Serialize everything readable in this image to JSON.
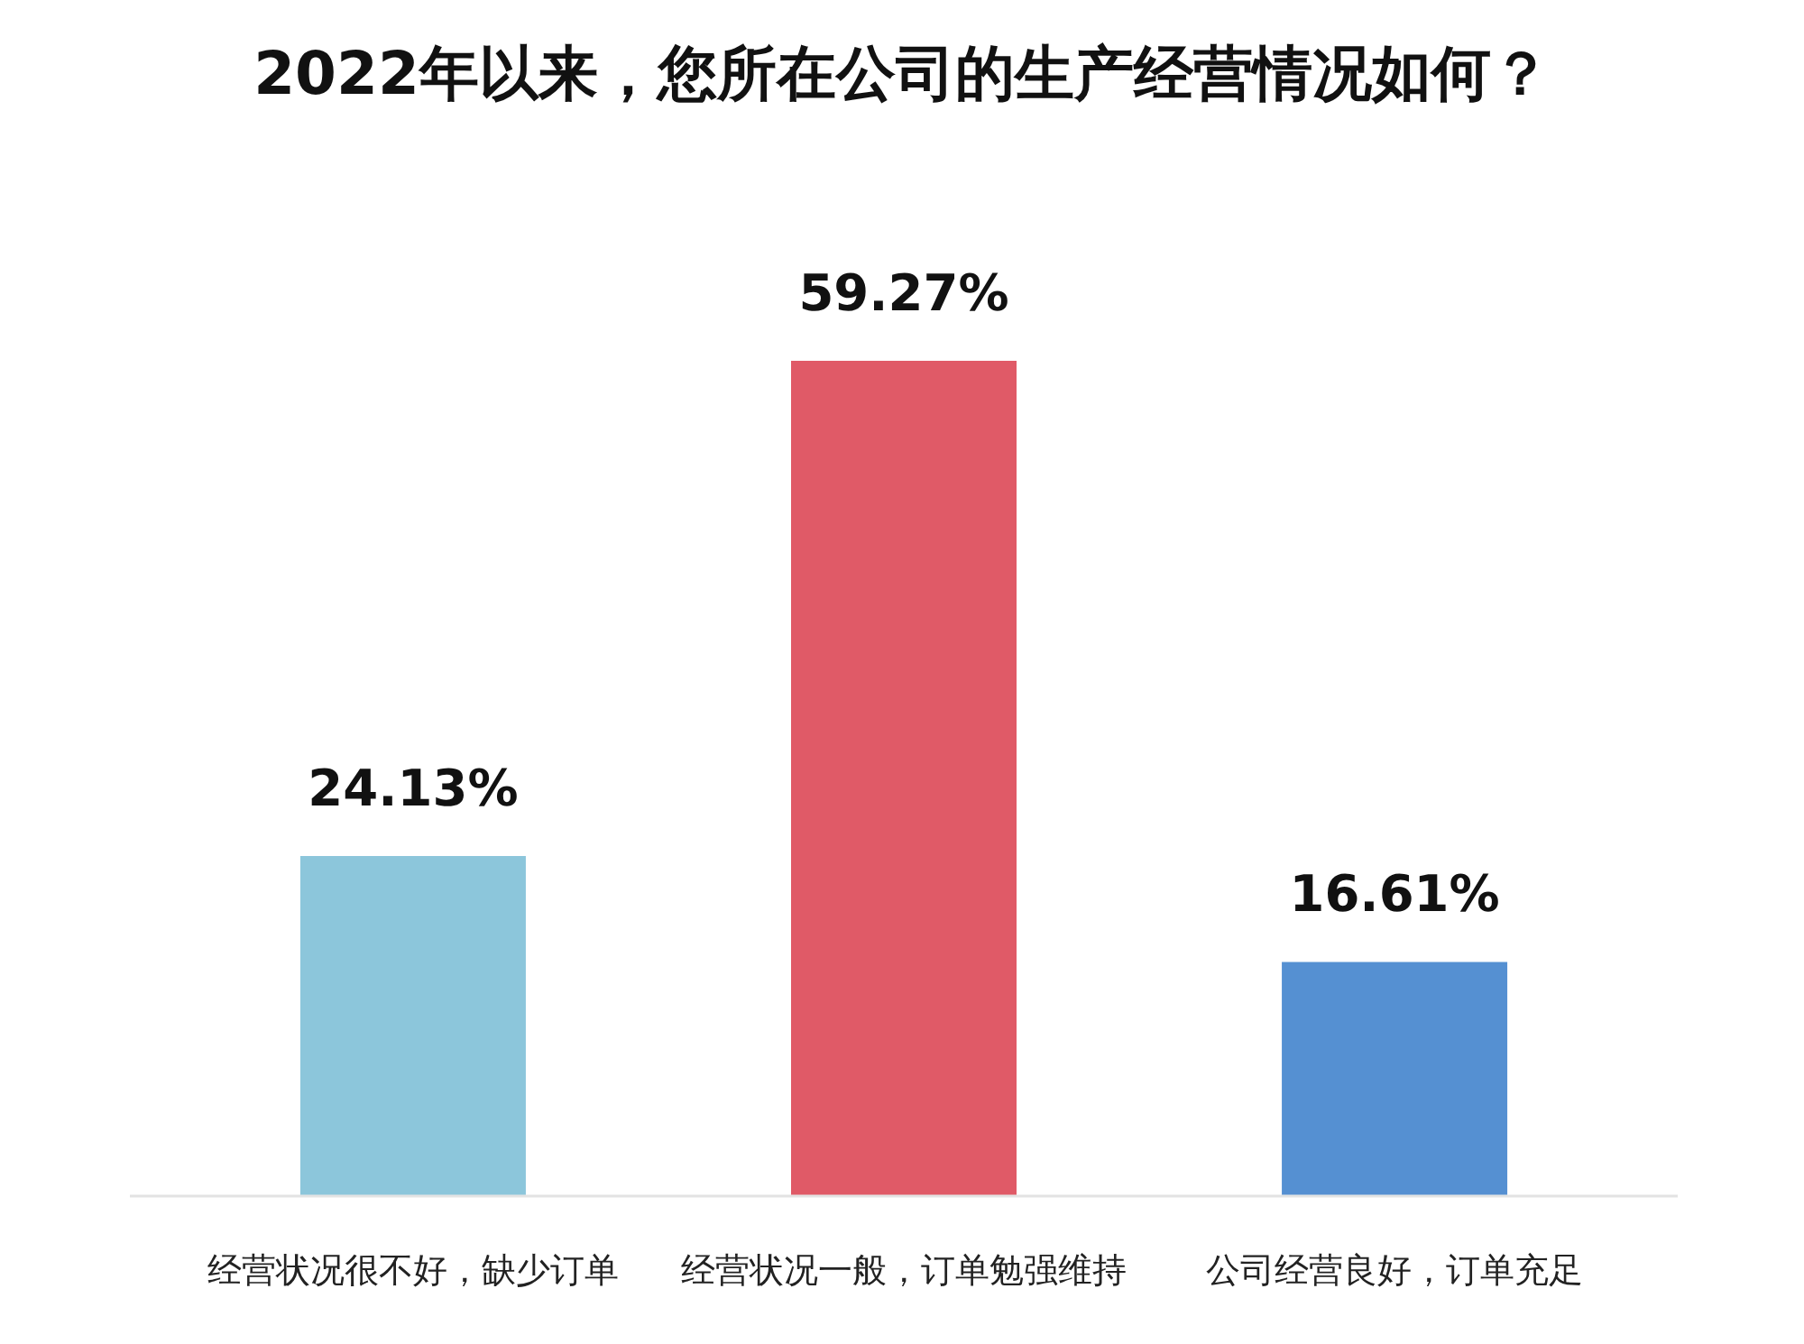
{
  "chart_data": {
    "type": "bar",
    "title": "2022年以来，您所在公司的生产经营情况如何？",
    "categories": [
      "经营状况很不好，缺少订单",
      "经营状况一般，订单勉强维持",
      "公司经营良好，订单充足"
    ],
    "values": [
      24.13,
      59.27,
      16.61
    ],
    "colors": [
      "#8cc6db",
      "#e05a67",
      "#5590d2"
    ],
    "value_labels": [
      "24.13%",
      "59.27%",
      "16.61%"
    ],
    "grid": false,
    "legend": false
  }
}
